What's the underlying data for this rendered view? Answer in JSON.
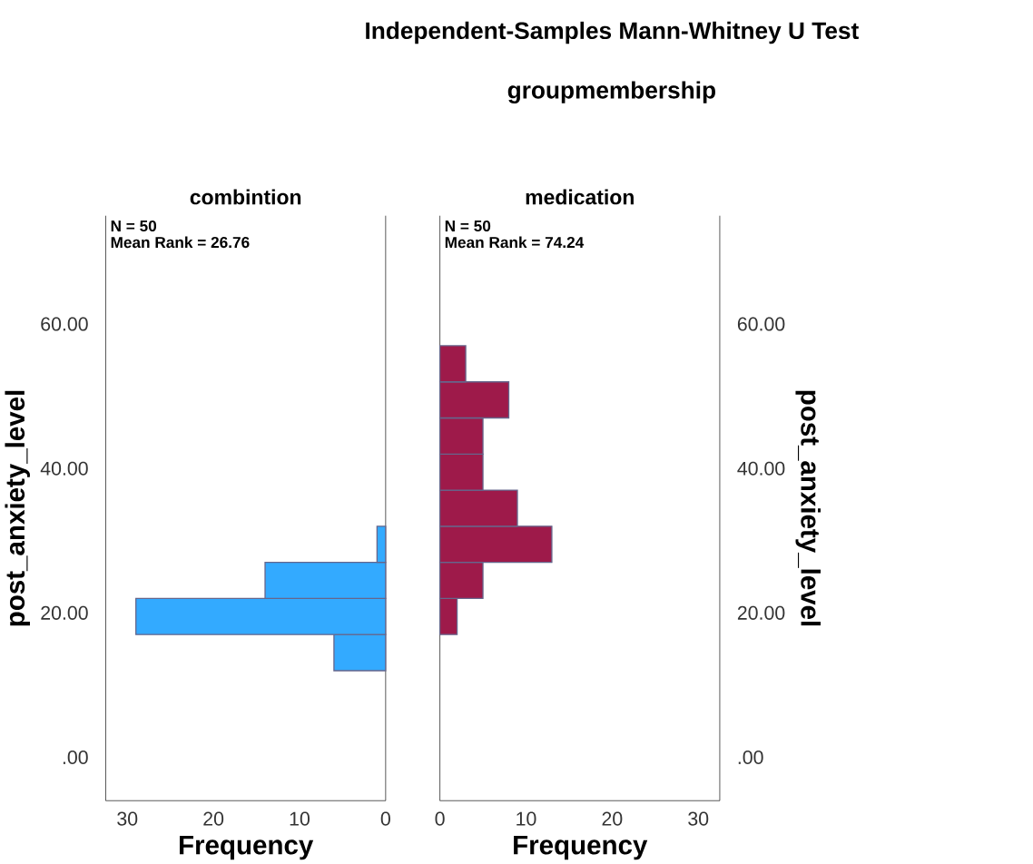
{
  "chart_data": [
    {
      "type": "other",
      "title": "Independent-Samples Mann-Whitney U Test",
      "subtitle": "groupmembership"
    },
    {
      "type": "histogram",
      "orientation": "horizontal",
      "title": "combintion",
      "xlabel": "Frequency",
      "ylabel": "post_anxiety_level",
      "annotations": [
        "N = 50",
        "Mean Rank = 26.76"
      ],
      "bins": [
        12,
        17,
        22,
        27,
        32
      ],
      "values": [
        6,
        29,
        14,
        1
      ],
      "color": "#33aaff",
      "xlim": [
        32.5,
        0
      ],
      "xticks": [
        30,
        20,
        10,
        0
      ],
      "ylim": [
        -6,
        75
      ],
      "yticks": [
        {
          "value": 0,
          "label": ".00"
        },
        {
          "value": 20,
          "label": "20.00"
        },
        {
          "value": 40,
          "label": "40.00"
        },
        {
          "value": 60,
          "label": "60.00"
        }
      ]
    },
    {
      "type": "histogram",
      "orientation": "horizontal",
      "title": "medication",
      "xlabel": "Frequency",
      "ylabel": "post_anxiety_level",
      "annotations": [
        "N = 50",
        "Mean Rank = 74.24"
      ],
      "bins": [
        17,
        22,
        27,
        32,
        37,
        42,
        47,
        52,
        57
      ],
      "values": [
        2,
        5,
        13,
        9,
        5,
        5,
        8,
        3
      ],
      "color": "#9e1a4a",
      "xlim": [
        0,
        32.5
      ],
      "xticks": [
        0,
        10,
        20,
        30
      ],
      "ylim": [
        -6,
        75
      ],
      "yticks": [
        {
          "value": 0,
          "label": ".00"
        },
        {
          "value": 20,
          "label": "20.00"
        },
        {
          "value": 40,
          "label": "40.00"
        },
        {
          "value": 60,
          "label": "60.00"
        }
      ]
    }
  ]
}
